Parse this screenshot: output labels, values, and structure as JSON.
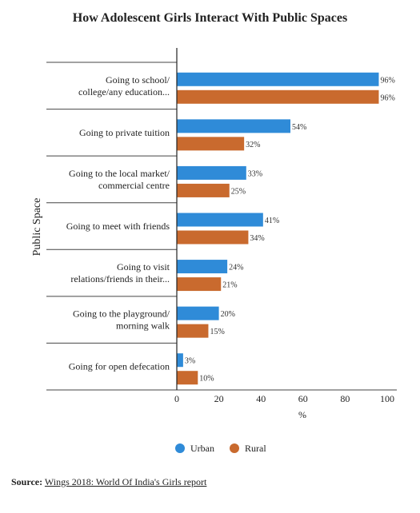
{
  "title": "How Adolescent Girls Interact With Public Spaces",
  "source": {
    "label": "Source:",
    "text": "Wings 2018: World Of India's Girls report"
  },
  "colors": {
    "urban": "#2f8bd8",
    "rural": "#c96a2e"
  },
  "chart_data": {
    "type": "bar",
    "orientation": "horizontal",
    "title": "How Adolescent Girls Interact With Public Spaces",
    "ylabel": "Public Space",
    "xlabel": "%",
    "xlim": [
      0,
      100
    ],
    "xticks": [
      0,
      20,
      40,
      60,
      80,
      100
    ],
    "grid": false,
    "legend": "bottom-center",
    "value_suffix": "%",
    "categories": [
      [
        "Going to school/",
        "college/any education..."
      ],
      [
        "Going to private tuition"
      ],
      [
        "Going to the local market/",
        "commercial centre"
      ],
      [
        "Going to meet with friends"
      ],
      [
        "Going to visit",
        "relations/friends in their..."
      ],
      [
        "Going to the playground/",
        "morning walk"
      ],
      [
        "Going for open defecation"
      ]
    ],
    "series": [
      {
        "name": "Urban",
        "color": "#2f8bd8",
        "values": [
          96,
          54,
          33,
          41,
          24,
          20,
          3
        ]
      },
      {
        "name": "Rural",
        "color": "#c96a2e",
        "values": [
          96,
          32,
          25,
          34,
          21,
          15,
          10
        ]
      }
    ]
  }
}
